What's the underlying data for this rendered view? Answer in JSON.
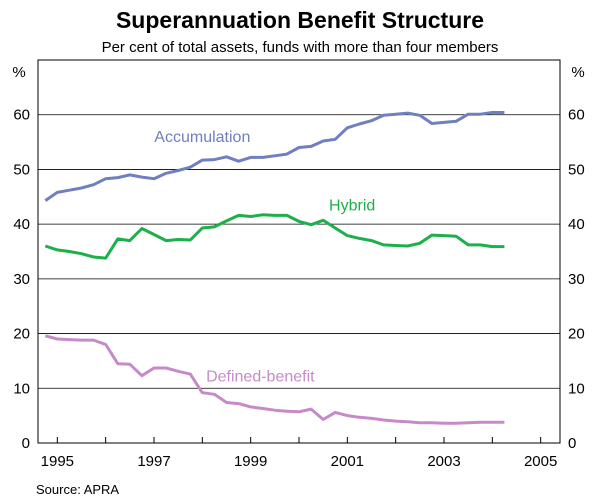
{
  "chart_data": {
    "type": "line",
    "title": "Superannuation Benefit Structure",
    "subtitle": "Per cent of total assets, funds with more than four members",
    "ylabel_left": "%",
    "ylabel_right": "%",
    "ylim": [
      0,
      70
    ],
    "yticks": [
      0,
      10,
      20,
      30,
      40,
      50,
      60
    ],
    "xlim": [
      1994.6,
      2005.4
    ],
    "xticks": [
      1995,
      1997,
      1999,
      2001,
      2003,
      2005
    ],
    "xtick_labels": [
      "1995",
      "1997",
      "1999",
      "2001",
      "2003",
      "2005"
    ],
    "source": "Source: APRA",
    "series": [
      {
        "name": "Accumulation",
        "color": "#6f7fbf",
        "x": [
          1994.75,
          1995.0,
          1995.25,
          1995.5,
          1995.75,
          1996.0,
          1996.25,
          1996.5,
          1996.75,
          1997.0,
          1997.25,
          1997.5,
          1997.75,
          1998.0,
          1998.25,
          1998.5,
          1998.75,
          1999.0,
          1999.25,
          1999.5,
          1999.75,
          2000.0,
          2000.25,
          2000.5,
          2000.75,
          2001.0,
          2001.25,
          2001.5,
          2001.75,
          2002.0,
          2002.25,
          2002.5,
          2002.75,
          2003.0,
          2003.25,
          2003.5,
          2003.75,
          2004.0,
          2004.25
        ],
        "values": [
          44.3,
          45.8,
          46.2,
          46.6,
          47.2,
          48.3,
          48.5,
          49.0,
          48.6,
          48.3,
          49.3,
          49.8,
          50.4,
          51.7,
          51.8,
          52.3,
          51.5,
          52.2,
          52.2,
          52.5,
          52.8,
          54.0,
          54.2,
          55.2,
          55.5,
          57.6,
          58.3,
          58.9,
          59.9,
          60.1,
          60.3,
          59.9,
          58.4,
          58.6,
          58.8,
          60.1,
          60.1,
          60.4,
          60.4
        ]
      },
      {
        "name": "Hybrid",
        "color": "#1db04a",
        "x": [
          1994.75,
          1995.0,
          1995.25,
          1995.5,
          1995.75,
          1996.0,
          1996.25,
          1996.5,
          1996.75,
          1997.0,
          1997.25,
          1997.5,
          1997.75,
          1998.0,
          1998.25,
          1998.5,
          1998.75,
          1999.0,
          1999.25,
          1999.5,
          1999.75,
          2000.0,
          2000.25,
          2000.5,
          2000.75,
          2001.0,
          2001.25,
          2001.5,
          2001.75,
          2002.0,
          2002.25,
          2002.5,
          2002.75,
          2003.0,
          2003.25,
          2003.5,
          2003.75,
          2004.0,
          2004.25
        ],
        "values": [
          36.0,
          35.3,
          35.0,
          34.6,
          34.0,
          33.8,
          37.3,
          37.0,
          39.2,
          38.1,
          37.0,
          37.2,
          37.1,
          39.3,
          39.5,
          40.6,
          41.6,
          41.4,
          41.7,
          41.6,
          41.6,
          40.5,
          39.9,
          40.7,
          39.3,
          37.9,
          37.4,
          37.0,
          36.2,
          36.1,
          36.0,
          36.5,
          38.0,
          37.9,
          37.8,
          36.2,
          36.2,
          35.9,
          35.9
        ]
      },
      {
        "name": "Defined-benefit",
        "color": "#c78ac9",
        "x": [
          1994.75,
          1995.0,
          1995.25,
          1995.5,
          1995.75,
          1996.0,
          1996.25,
          1996.5,
          1996.75,
          1997.0,
          1997.25,
          1997.5,
          1997.75,
          1998.0,
          1998.25,
          1998.5,
          1998.75,
          1999.0,
          1999.25,
          1999.5,
          1999.75,
          2000.0,
          2000.25,
          2000.5,
          2000.75,
          2001.0,
          2001.25,
          2001.5,
          2001.75,
          2002.0,
          2002.25,
          2002.5,
          2002.75,
          2003.0,
          2003.25,
          2003.5,
          2003.75,
          2004.0,
          2004.25
        ],
        "values": [
          19.6,
          19.0,
          18.9,
          18.8,
          18.8,
          18.0,
          14.5,
          14.4,
          12.3,
          13.7,
          13.7,
          13.1,
          12.6,
          9.2,
          8.9,
          7.4,
          7.2,
          6.6,
          6.3,
          6.0,
          5.8,
          5.7,
          6.2,
          4.3,
          5.6,
          5.0,
          4.7,
          4.5,
          4.2,
          4.0,
          3.9,
          3.7,
          3.7,
          3.6,
          3.6,
          3.7,
          3.8,
          3.8,
          3.8
        ]
      }
    ],
    "annotations": [
      {
        "text": "Accumulation",
        "series": "Accumulation",
        "at_x": 1998.0,
        "at_y": 55.0
      },
      {
        "text": "Hybrid",
        "series": "Hybrid",
        "at_x": 2001.1,
        "at_y": 42.5
      },
      {
        "text": "Defined-benefit",
        "series": "Defined-benefit",
        "at_x": 1999.2,
        "at_y": 11.2
      }
    ]
  }
}
